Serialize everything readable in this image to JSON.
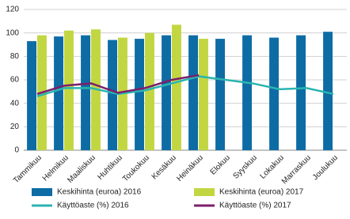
{
  "chart_data": {
    "type": "combo",
    "categories": [
      "Tammikuu",
      "Helmikuu",
      "Maaliskuu",
      "Huhtikuu",
      "Toukokuu",
      "Kesäkuu",
      "Heinäkuu",
      "Elokuu",
      "Syyskuu",
      "Lokakuu",
      "Marraskuu",
      "Joulukuu"
    ],
    "series": [
      {
        "name": "Keskihinta (euroa) 2016",
        "type": "bar",
        "color": "#0e6ca5",
        "values": [
          93,
          97,
          98,
          94,
          95,
          98,
          98,
          95,
          98,
          96,
          98,
          101
        ]
      },
      {
        "name": "Keskihinta (euroa) 2017",
        "type": "bar",
        "color": "#c2d642",
        "values": [
          98,
          102,
          103,
          96,
          100,
          107,
          95,
          null,
          null,
          null,
          null,
          null
        ]
      },
      {
        "name": "Käyttöaste (%) 2016",
        "type": "line",
        "color": "#2ab5b0",
        "values": [
          46,
          53,
          53,
          48,
          51,
          57,
          63,
          60,
          57,
          52,
          53,
          48
        ]
      },
      {
        "name": "Käyttöaste (%) 2017",
        "type": "line",
        "color": "#7b1f6b",
        "values": [
          48,
          55,
          57,
          49,
          53,
          60,
          64,
          null,
          null,
          null,
          null,
          null
        ]
      }
    ],
    "ylim": [
      0,
      120
    ],
    "yticks": [
      0,
      20,
      40,
      60,
      80,
      100,
      120
    ],
    "grid": true
  }
}
